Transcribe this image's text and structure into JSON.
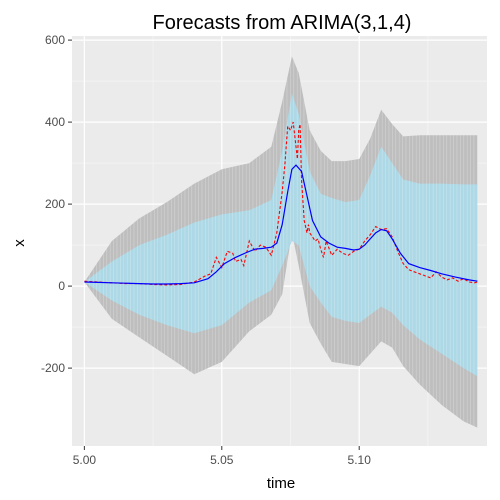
{
  "chart_data": {
    "type": "line",
    "title": "Forecasts from  ARIMA(3,1,4)",
    "xlabel": "time",
    "ylabel": "x",
    "xlim": [
      4.9955,
      5.1465
    ],
    "ylim": [
      -390,
      610
    ],
    "xticks": [
      5.0,
      5.05,
      5.1
    ],
    "xtick_labels": [
      "5.00",
      "5.05",
      "5.10"
    ],
    "yticks": [
      -200,
      0,
      200,
      400,
      600
    ],
    "ytick_labels": [
      "-200",
      "0",
      "200",
      "400",
      "600"
    ],
    "grid": true,
    "legend": "none",
    "colors": {
      "panel": "#ebebeb",
      "grid_major": "#ffffff",
      "grid_minor": "#f5f5f5",
      "band95": "#bebebe",
      "band80": "#add8e6",
      "fitted": "#0000ff",
      "actual": "#ff0000",
      "tick_text": "#4d4d4d"
    },
    "fitted": {
      "x": [
        5.0,
        5.005,
        5.01,
        5.015,
        5.02,
        5.025,
        5.03,
        5.035,
        5.04,
        5.045,
        5.048,
        5.051,
        5.055,
        5.059,
        5.062,
        5.065,
        5.068,
        5.07,
        5.072,
        5.074,
        5.0755,
        5.077,
        5.079,
        5.081,
        5.083,
        5.086,
        5.089,
        5.092,
        5.095,
        5.098,
        5.1,
        5.102,
        5.104,
        5.106,
        5.108,
        5.11,
        5.112,
        5.115,
        5.118,
        5.122,
        5.126,
        5.13,
        5.135,
        5.14,
        5.143
      ],
      "y": [
        10,
        9,
        8,
        7,
        6,
        5,
        5,
        6,
        8,
        18,
        35,
        55,
        70,
        82,
        90,
        92,
        95,
        105,
        150,
        230,
        285,
        295,
        280,
        220,
        160,
        120,
        105,
        95,
        92,
        88,
        90,
        100,
        115,
        130,
        138,
        135,
        115,
        80,
        55,
        45,
        38,
        30,
        22,
        15,
        12
      ]
    },
    "actual": {
      "x": [
        5.0,
        5.005,
        5.01,
        5.015,
        5.02,
        5.025,
        5.03,
        5.035,
        5.04,
        5.044,
        5.046,
        5.048,
        5.05,
        5.052,
        5.054,
        5.055,
        5.057,
        5.058,
        5.06,
        5.062,
        5.064,
        5.066,
        5.068,
        5.07,
        5.072,
        5.073,
        5.074,
        5.075,
        5.076,
        5.077,
        5.0775,
        5.078,
        5.0785,
        5.079,
        5.08,
        5.081,
        5.0815,
        5.082,
        5.083,
        5.084,
        5.085,
        5.086,
        5.087,
        5.088,
        5.09,
        5.092,
        5.094,
        5.096,
        5.098,
        5.1,
        5.102,
        5.104,
        5.106,
        5.108,
        5.11,
        5.112,
        5.114,
        5.116,
        5.118,
        5.12,
        5.122,
        5.124,
        5.126,
        5.128,
        5.13,
        5.132,
        5.134,
        5.136,
        5.138,
        5.14,
        5.142,
        5.143
      ],
      "y": [
        12,
        10,
        8,
        6,
        6,
        4,
        3,
        4,
        10,
        25,
        30,
        70,
        45,
        85,
        80,
        60,
        65,
        50,
        110,
        85,
        100,
        95,
        75,
        130,
        230,
        300,
        390,
        380,
        400,
        340,
        310,
        380,
        395,
        260,
        160,
        130,
        150,
        130,
        120,
        110,
        115,
        90,
        70,
        110,
        75,
        90,
        80,
        75,
        85,
        90,
        110,
        125,
        145,
        138,
        140,
        120,
        85,
        55,
        40,
        35,
        30,
        25,
        20,
        35,
        22,
        15,
        20,
        12,
        18,
        10,
        8,
        10
      ]
    },
    "band80": {
      "x": [
        5.0,
        5.01,
        5.02,
        5.03,
        5.04,
        5.05,
        5.06,
        5.068,
        5.072,
        5.0755,
        5.078,
        5.082,
        5.086,
        5.09,
        5.095,
        5.1,
        5.104,
        5.108,
        5.112,
        5.116,
        5.122,
        5.13,
        5.138,
        5.143
      ],
      "upper": [
        10,
        60,
        100,
        125,
        155,
        175,
        185,
        210,
        330,
        470,
        420,
        280,
        225,
        215,
        205,
        210,
        270,
        340,
        300,
        260,
        250,
        250,
        248,
        248
      ],
      "lower": [
        10,
        -35,
        -70,
        -95,
        -115,
        -95,
        -40,
        -10,
        50,
        110,
        100,
        0,
        -40,
        -75,
        -85,
        -90,
        -70,
        -50,
        -65,
        -95,
        -130,
        -165,
        -200,
        -220
      ]
    },
    "band95": {
      "x": [
        5.0,
        5.01,
        5.02,
        5.03,
        5.04,
        5.05,
        5.06,
        5.068,
        5.072,
        5.0755,
        5.078,
        5.082,
        5.086,
        5.09,
        5.095,
        5.1,
        5.104,
        5.108,
        5.112,
        5.116,
        5.122,
        5.13,
        5.138,
        5.143
      ],
      "upper": [
        10,
        110,
        165,
        205,
        250,
        285,
        300,
        340,
        450,
        560,
        520,
        380,
        330,
        305,
        305,
        310,
        360,
        430,
        395,
        365,
        368,
        368,
        368,
        368
      ],
      "lower": [
        10,
        -80,
        -125,
        -170,
        -215,
        -185,
        -110,
        -70,
        -20,
        130,
        50,
        -90,
        -140,
        -185,
        -190,
        -195,
        -165,
        -135,
        -150,
        -195,
        -240,
        -290,
        -330,
        -345
      ]
    }
  }
}
